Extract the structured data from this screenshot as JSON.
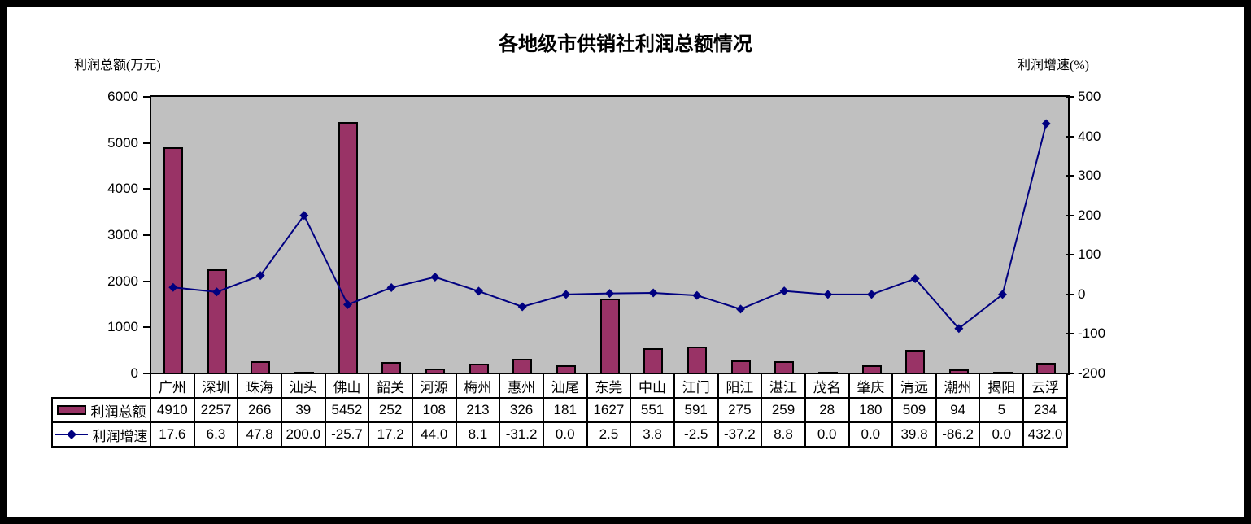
{
  "title": "各地级市供销社利润总额情况",
  "left_axis": {
    "label": "利润总额(万元)"
  },
  "right_axis": {
    "label": "利润增速(%)"
  },
  "colors": {
    "bar_fill": "#993366",
    "line": "#000080",
    "plot_background": "#C0C0C0",
    "frame_border": "#000000",
    "table_background": "#FFFFFF"
  },
  "chart_data": {
    "type": "bar",
    "subtype": "combo-bar-line-dual-axis",
    "title": "各地级市供销社利润总额情况",
    "categories": [
      "广州",
      "深圳",
      "珠海",
      "汕头",
      "佛山",
      "韶关",
      "河源",
      "梅州",
      "惠州",
      "汕尾",
      "东莞",
      "中山",
      "江门",
      "阳江",
      "湛江",
      "茂名",
      "肇庆",
      "清远",
      "潮州",
      "揭阳",
      "云浮"
    ],
    "series": [
      {
        "name": "利润总额",
        "type": "bar",
        "axis": "left",
        "color": "#993366",
        "values": [
          4910,
          2257,
          266,
          39,
          5452,
          252,
          108,
          213,
          326,
          181,
          1627,
          551,
          591,
          275,
          259,
          28,
          180,
          509,
          94,
          5,
          234
        ]
      },
      {
        "name": "利润增速",
        "type": "line",
        "axis": "right",
        "color": "#000080",
        "marker": "diamond",
        "values": [
          17.6,
          6.3,
          47.8,
          200.0,
          -25.7,
          17.2,
          44.0,
          8.1,
          -31.2,
          0.0,
          2.5,
          3.8,
          -2.5,
          -37.2,
          8.8,
          0.0,
          0.0,
          39.8,
          -86.2,
          0.0,
          432.0
        ]
      }
    ],
    "left_ylabel": "利润总额(万元)",
    "right_ylabel": "利润增速(%)",
    "left_ylim": [
      0,
      6000
    ],
    "left_step": 1000,
    "right_ylim": [
      -200,
      500
    ],
    "right_step": 100,
    "grid": false,
    "plot_background": "#C0C0C0",
    "legend_position": "data-table-left-column",
    "data_table_shown": true
  }
}
